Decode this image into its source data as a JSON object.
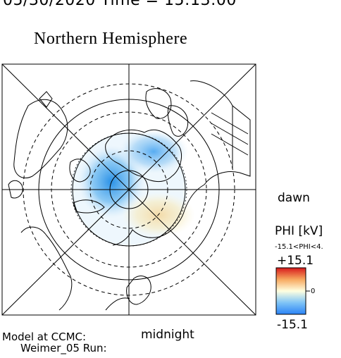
{
  "header": {
    "datetime": "05/30/2020 Time = 15:13:00"
  },
  "plot": {
    "title": "Northern Hemisphere",
    "dawn_label": "dawn",
    "midnight_label": "midnight"
  },
  "credit": {
    "line1": "Model at CCMC:",
    "line2": "Weimer_05 Run:"
  },
  "colorbar": {
    "title": "PHI [kV]",
    "range_text": "-15.1<PHI<4.",
    "max_label": "+15.1",
    "zero_label": "0",
    "min_label": "-15.1",
    "colors": {
      "max": "#d7191c",
      "mid": "#ffffe0",
      "min": "#2b83f6"
    }
  }
}
